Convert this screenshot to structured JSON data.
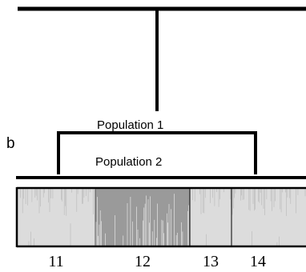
{
  "panel_label": "b",
  "brackets": {
    "population_1": "Population 1",
    "population_2": "Population 2"
  },
  "plot": {
    "colors": {
      "background": "#ffffff",
      "line": "#000000",
      "light_fill": "#dcdcdc",
      "dark_fill": "#9a9a9a",
      "stripe_light": "#b8b8b8",
      "stripe_dark": "#f2f2f2"
    },
    "segments": [
      {
        "label": "11",
        "tone": "light"
      },
      {
        "label": "12",
        "tone": "dark"
      },
      {
        "label": "13",
        "tone": "light"
      },
      {
        "label": "14",
        "tone": "light"
      }
    ]
  }
}
